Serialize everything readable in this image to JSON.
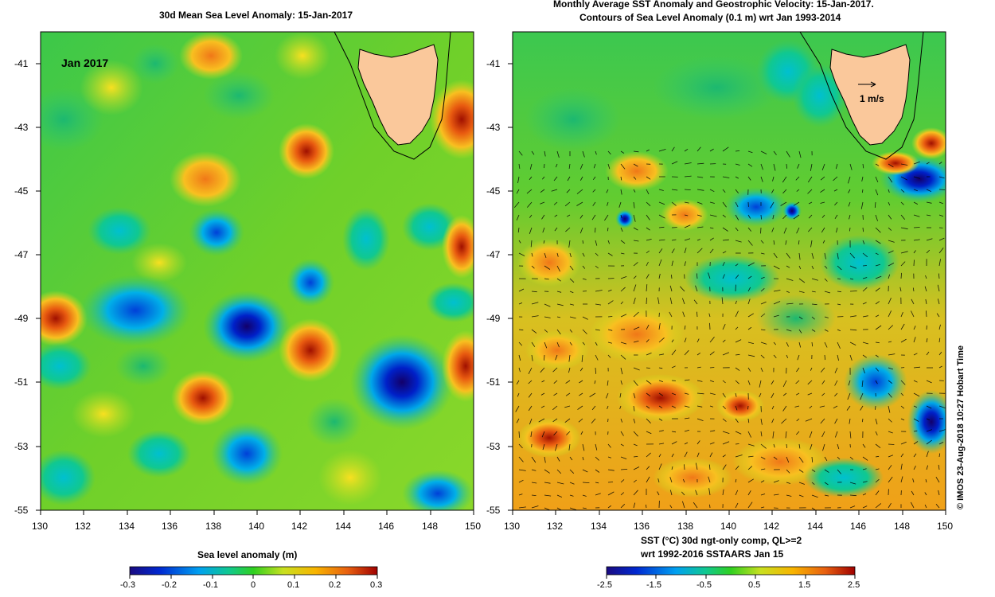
{
  "left_panel": {
    "title": "30d Mean Sea Level Anomaly: 15-Jan-2017",
    "inset_label": "Jan 2017",
    "colorbar": {
      "title": "Sea level anomaly (m)",
      "ticks": [
        "-0.3",
        "-0.2",
        "-0.1",
        "0",
        "0.1",
        "0.2",
        "0.3"
      ]
    }
  },
  "right_panel": {
    "title_line1": "Monthly Average SST Anomaly  and Geostrophic Velocity: 15-Jan-2017.",
    "title_line2": "Contours of Sea Level Anomaly (0.1 m) wrt Jan 1993-2014",
    "vector_scale_label": "1 m/s",
    "colorbar": {
      "title_line1": "SST (°C) 30d ngt-only comp, QL>=2",
      "title_line2": "wrt 1992-2016 SSTAARS Jan 15",
      "ticks": [
        "-2.5",
        "-1.5",
        "-0.5",
        "0.5",
        "1.5",
        "2.5"
      ]
    }
  },
  "axes": {
    "lat_ticks": [
      "-41",
      "-43",
      "-45",
      "-47",
      "-49",
      "-51",
      "-53",
      "-55"
    ],
    "lon_ticks": [
      "130",
      "132",
      "134",
      "136",
      "138",
      "140",
      "142",
      "144",
      "146",
      "148",
      "150"
    ]
  },
  "credit": "© IMOS 23-Aug-2018 10:27 Hobart Time",
  "colors": {
    "land": "#fac89b",
    "background_field": "#66cc1a",
    "scale_stops": [
      "#1a0a80",
      "#0028d0",
      "#00a0f0",
      "#10c890",
      "#30d020",
      "#c8e020",
      "#f8b400",
      "#e86010",
      "#a00000"
    ]
  }
}
